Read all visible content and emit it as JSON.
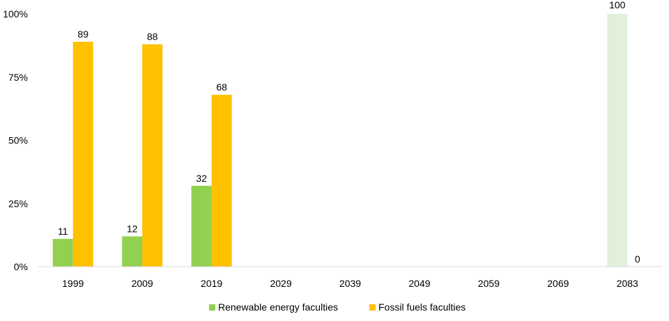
{
  "chart_data": {
    "type": "bar",
    "categories": [
      "1999",
      "2009",
      "2019",
      "2029",
      "2039",
      "2049",
      "2059",
      "2069",
      "2083"
    ],
    "ylim": [
      0,
      100
    ],
    "y_ticks": [
      "0%",
      "25%",
      "50%",
      "75%",
      "100%"
    ],
    "y_tick_values": [
      0,
      25,
      50,
      75,
      100
    ],
    "grid": false,
    "legend_position": "bottom",
    "series": [
      {
        "name": "Renewable energy faculties",
        "color": "#92D050",
        "values": [
          11,
          12,
          32,
          null,
          null,
          null,
          null,
          null,
          100
        ],
        "labels": [
          "11",
          "12",
          "32",
          "",
          "",
          "",
          "",
          "",
          "100"
        ]
      },
      {
        "name": "Fossil fuels faculties",
        "color": "#FFC000",
        "values": [
          89,
          88,
          68,
          null,
          null,
          null,
          null,
          null,
          0
        ],
        "labels": [
          "89",
          "88",
          "68",
          "",
          "",
          "",
          "",
          "",
          "0"
        ]
      }
    ],
    "projection_color_renewable": "#E2EFD9",
    "projection_arrow_renewable_color": "#A9D18E",
    "projection_arrow_fossil_color": "#FFE699"
  }
}
